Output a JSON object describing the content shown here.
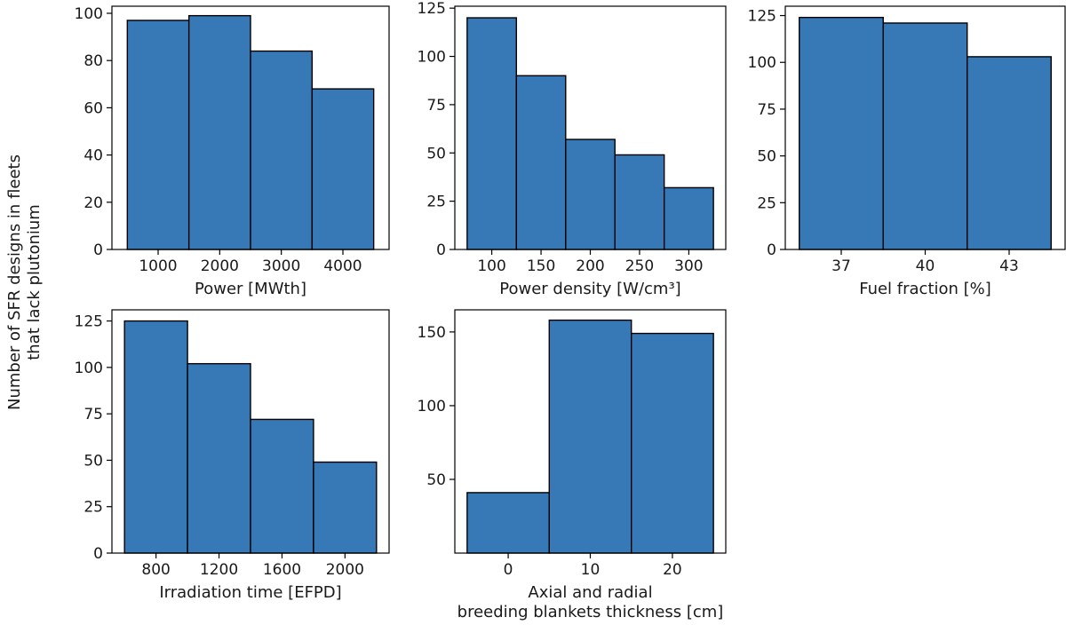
{
  "shared_ylabel": [
    "Number of SFR designs in fleets",
    "that lack plutonium"
  ],
  "chart_data": [
    {
      "type": "bar",
      "name": "power",
      "xlabel": [
        "Power [MWth]"
      ],
      "categories": [
        "1000",
        "2000",
        "3000",
        "4000"
      ],
      "values": [
        97,
        99,
        84,
        68
      ],
      "edges": [
        500,
        1500,
        2500,
        3500,
        4500
      ],
      "xlim": [
        250,
        4750
      ],
      "xticks": [
        1000,
        2000,
        3000,
        4000
      ],
      "xtick_labels": [
        "1000",
        "2000",
        "3000",
        "4000"
      ],
      "ylim": [
        0,
        103
      ],
      "yticks": [
        0,
        20,
        40,
        60,
        80,
        100
      ],
      "ytick_labels": [
        "0",
        "20",
        "40",
        "60",
        "80",
        "100"
      ]
    },
    {
      "type": "bar",
      "name": "power-density",
      "xlabel": [
        "Power density [W/cm³]"
      ],
      "categories": [
        "100",
        "150",
        "200",
        "250",
        "300"
      ],
      "values": [
        120,
        90,
        57,
        49,
        32
      ],
      "edges": [
        75,
        125,
        175,
        225,
        275,
        325
      ],
      "xlim": [
        62.5,
        337.5
      ],
      "xticks": [
        100,
        150,
        200,
        250,
        300
      ],
      "xtick_labels": [
        "100",
        "150",
        "200",
        "250",
        "300"
      ],
      "ylim": [
        0,
        126
      ],
      "yticks": [
        0,
        25,
        50,
        75,
        100,
        125
      ],
      "ytick_labels": [
        "0",
        "25",
        "50",
        "75",
        "100",
        "125"
      ]
    },
    {
      "type": "bar",
      "name": "fuel-fraction",
      "xlabel": [
        "Fuel fraction [%]"
      ],
      "categories": [
        "37",
        "40",
        "43"
      ],
      "values": [
        124,
        121,
        103
      ],
      "edges": [
        35.5,
        38.5,
        41.5,
        44.5
      ],
      "xlim": [
        35.0,
        45.0
      ],
      "xticks": [
        37,
        40,
        43
      ],
      "xtick_labels": [
        "37",
        "40",
        "43"
      ],
      "ylim": [
        0,
        130
      ],
      "yticks": [
        0,
        25,
        50,
        75,
        100,
        125
      ],
      "ytick_labels": [
        "0",
        "25",
        "50",
        "75",
        "100",
        "125"
      ]
    },
    {
      "type": "bar",
      "name": "irradiation-time",
      "xlabel": [
        "Irradiation time [EFPD]"
      ],
      "categories": [
        "800",
        "1200",
        "1600",
        "2000"
      ],
      "values": [
        125,
        102,
        72,
        49
      ],
      "edges": [
        600,
        1000,
        1400,
        1800,
        2200
      ],
      "xlim": [
        520,
        2280
      ],
      "xticks": [
        800,
        1200,
        1600,
        2000
      ],
      "xtick_labels": [
        "800",
        "1200",
        "1600",
        "2000"
      ],
      "ylim": [
        0,
        131
      ],
      "yticks": [
        0,
        25,
        50,
        75,
        100,
        125
      ],
      "ytick_labels": [
        "0",
        "25",
        "50",
        "75",
        "100",
        "125"
      ]
    },
    {
      "type": "bar",
      "name": "blanket-thickness",
      "xlabel": [
        "Axial and radial",
        "breeding blankets thickness [cm]"
      ],
      "categories": [
        "0",
        "10",
        "20"
      ],
      "values": [
        41,
        158,
        149
      ],
      "edges": [
        -5,
        5,
        15,
        25
      ],
      "xlim": [
        -6.5,
        26.5
      ],
      "xticks": [
        0,
        10,
        20
      ],
      "xtick_labels": [
        "0",
        "10",
        "20"
      ],
      "ylim": [
        0,
        165
      ],
      "yticks": [
        50,
        100,
        150
      ],
      "ytick_labels": [
        "50",
        "100",
        "150"
      ]
    }
  ]
}
